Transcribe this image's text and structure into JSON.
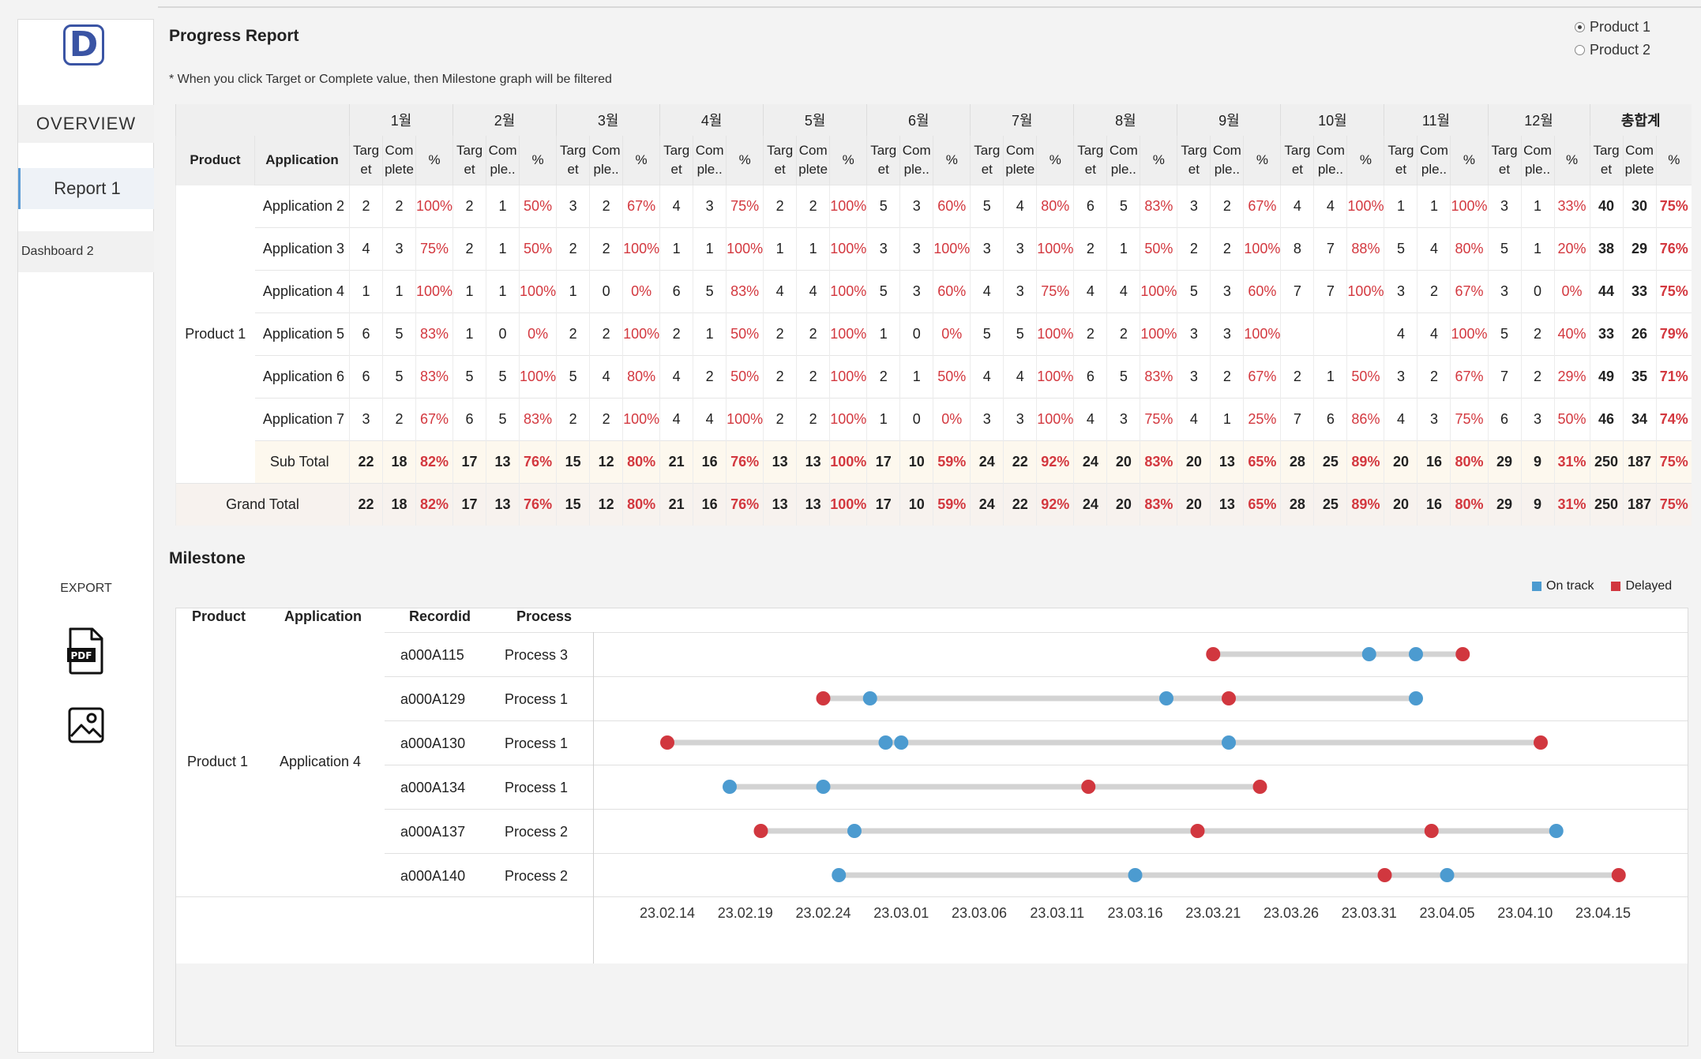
{
  "sidebar": {
    "logo_letter": "D",
    "nav": {
      "overview": "OVERVIEW",
      "report1": "Report 1",
      "dashboard2": "Dashboard 2"
    },
    "export_label": "EXPORT",
    "pdf_label": "PDF"
  },
  "header": {
    "title": "Progress Report",
    "note": "* When you click Target or Complete value, then Milestone graph will be filtered"
  },
  "product_filter": {
    "options": [
      "Product 1",
      "Product 2"
    ],
    "selected": "Product 1"
  },
  "progress_table": {
    "headers": {
      "product": "Product",
      "application": "Application",
      "months": [
        "1월",
        "2월",
        "3월",
        "4월",
        "5월",
        "6월",
        "7월",
        "8월",
        "9월",
        "10월",
        "11월",
        "12월"
      ],
      "total": "총합계",
      "target_lines": [
        "Targ",
        "et"
      ],
      "complete_lines_full": [
        "Com",
        "plete"
      ],
      "complete_lines_short": [
        "Com",
        "ple.."
      ],
      "percent": "%"
    },
    "complete_full_columns": [
      0,
      4,
      6,
      12
    ],
    "product_label": "Product 1",
    "rows": [
      {
        "application": "Application 2",
        "months": [
          [
            "2",
            "2",
            "100%"
          ],
          [
            "2",
            "1",
            "50%"
          ],
          [
            "3",
            "2",
            "67%"
          ],
          [
            "4",
            "3",
            "75%"
          ],
          [
            "2",
            "2",
            "100%"
          ],
          [
            "5",
            "3",
            "60%"
          ],
          [
            "5",
            "4",
            "80%"
          ],
          [
            "6",
            "5",
            "83%"
          ],
          [
            "3",
            "2",
            "67%"
          ],
          [
            "4",
            "4",
            "100%"
          ],
          [
            "1",
            "1",
            "100%"
          ],
          [
            "3",
            "1",
            "33%"
          ]
        ],
        "total": [
          "40",
          "30",
          "75%"
        ]
      },
      {
        "application": "Application 3",
        "months": [
          [
            "4",
            "3",
            "75%"
          ],
          [
            "2",
            "1",
            "50%"
          ],
          [
            "2",
            "2",
            "100%"
          ],
          [
            "1",
            "1",
            "100%"
          ],
          [
            "1",
            "1",
            "100%"
          ],
          [
            "3",
            "3",
            "100%"
          ],
          [
            "3",
            "3",
            "100%"
          ],
          [
            "2",
            "1",
            "50%"
          ],
          [
            "2",
            "2",
            "100%"
          ],
          [
            "8",
            "7",
            "88%"
          ],
          [
            "5",
            "4",
            "80%"
          ],
          [
            "5",
            "1",
            "20%"
          ]
        ],
        "total": [
          "38",
          "29",
          "76%"
        ]
      },
      {
        "application": "Application 4",
        "months": [
          [
            "1",
            "1",
            "100%"
          ],
          [
            "1",
            "1",
            "100%"
          ],
          [
            "1",
            "0",
            "0%"
          ],
          [
            "6",
            "5",
            "83%"
          ],
          [
            "4",
            "4",
            "100%"
          ],
          [
            "5",
            "3",
            "60%"
          ],
          [
            "4",
            "3",
            "75%"
          ],
          [
            "4",
            "4",
            "100%"
          ],
          [
            "5",
            "3",
            "60%"
          ],
          [
            "7",
            "7",
            "100%"
          ],
          [
            "3",
            "2",
            "67%"
          ],
          [
            "3",
            "0",
            "0%"
          ]
        ],
        "total": [
          "44",
          "33",
          "75%"
        ]
      },
      {
        "application": "Application 5",
        "months": [
          [
            "6",
            "5",
            "83%"
          ],
          [
            "1",
            "0",
            "0%"
          ],
          [
            "2",
            "2",
            "100%"
          ],
          [
            "2",
            "1",
            "50%"
          ],
          [
            "2",
            "2",
            "100%"
          ],
          [
            "1",
            "0",
            "0%"
          ],
          [
            "5",
            "5",
            "100%"
          ],
          [
            "2",
            "2",
            "100%"
          ],
          [
            "3",
            "3",
            "100%"
          ],
          [
            "",
            "",
            ""
          ],
          [
            "4",
            "4",
            "100%"
          ],
          [
            "5",
            "2",
            "40%"
          ]
        ],
        "total": [
          "33",
          "26",
          "79%"
        ]
      },
      {
        "application": "Application 6",
        "months": [
          [
            "6",
            "5",
            "83%"
          ],
          [
            "5",
            "5",
            "100%"
          ],
          [
            "5",
            "4",
            "80%"
          ],
          [
            "4",
            "2",
            "50%"
          ],
          [
            "2",
            "2",
            "100%"
          ],
          [
            "2",
            "1",
            "50%"
          ],
          [
            "4",
            "4",
            "100%"
          ],
          [
            "6",
            "5",
            "83%"
          ],
          [
            "3",
            "2",
            "67%"
          ],
          [
            "2",
            "1",
            "50%"
          ],
          [
            "3",
            "2",
            "67%"
          ],
          [
            "7",
            "2",
            "29%"
          ]
        ],
        "total": [
          "49",
          "35",
          "71%"
        ]
      },
      {
        "application": "Application 7",
        "months": [
          [
            "3",
            "2",
            "67%"
          ],
          [
            "6",
            "5",
            "83%"
          ],
          [
            "2",
            "2",
            "100%"
          ],
          [
            "4",
            "4",
            "100%"
          ],
          [
            "2",
            "2",
            "100%"
          ],
          [
            "1",
            "0",
            "0%"
          ],
          [
            "3",
            "3",
            "100%"
          ],
          [
            "4",
            "3",
            "75%"
          ],
          [
            "4",
            "1",
            "25%"
          ],
          [
            "7",
            "6",
            "86%"
          ],
          [
            "4",
            "3",
            "75%"
          ],
          [
            "6",
            "3",
            "50%"
          ]
        ],
        "total": [
          "46",
          "34",
          "74%"
        ]
      }
    ],
    "subtotal": {
      "label": "Sub Total",
      "months": [
        [
          "22",
          "18",
          "82%"
        ],
        [
          "17",
          "13",
          "76%"
        ],
        [
          "15",
          "12",
          "80%"
        ],
        [
          "21",
          "16",
          "76%"
        ],
        [
          "13",
          "13",
          "100%"
        ],
        [
          "17",
          "10",
          "59%"
        ],
        [
          "24",
          "22",
          "92%"
        ],
        [
          "24",
          "20",
          "83%"
        ],
        [
          "20",
          "13",
          "65%"
        ],
        [
          "28",
          "25",
          "89%"
        ],
        [
          "20",
          "16",
          "80%"
        ],
        [
          "29",
          "9",
          "31%"
        ]
      ],
      "total": [
        "250",
        "187",
        "75%"
      ]
    },
    "grandtotal": {
      "label": "Grand Total",
      "months": [
        [
          "22",
          "18",
          "82%"
        ],
        [
          "17",
          "13",
          "76%"
        ],
        [
          "15",
          "12",
          "80%"
        ],
        [
          "21",
          "16",
          "76%"
        ],
        [
          "13",
          "13",
          "100%"
        ],
        [
          "17",
          "10",
          "59%"
        ],
        [
          "24",
          "22",
          "92%"
        ],
        [
          "24",
          "20",
          "83%"
        ],
        [
          "20",
          "13",
          "65%"
        ],
        [
          "28",
          "25",
          "89%"
        ],
        [
          "20",
          "16",
          "80%"
        ],
        [
          "29",
          "9",
          "31%"
        ]
      ],
      "total": [
        "250",
        "187",
        "75%"
      ]
    }
  },
  "milestone": {
    "title": "Milestone",
    "legend": [
      {
        "label": "On track",
        "color": "#4c9bd0"
      },
      {
        "label": "Delayed",
        "color": "#d1373f"
      }
    ],
    "headers": {
      "product": "Product",
      "application": "Application",
      "recordid": "Recordid",
      "process": "Process"
    },
    "product": "Product 1",
    "application": "Application 4",
    "records": [
      {
        "recordid": "a000A115",
        "process": "Process 3"
      },
      {
        "recordid": "a000A129",
        "process": "Process 1"
      },
      {
        "recordid": "a000A130",
        "process": "Process 1"
      },
      {
        "recordid": "a000A134",
        "process": "Process 1"
      },
      {
        "recordid": "a000A137",
        "process": "Process 2"
      },
      {
        "recordid": "a000A140",
        "process": "Process 2"
      }
    ]
  },
  "chart_data": {
    "type": "scatter",
    "x_axis": "date",
    "x_tick_labels": [
      "23.02.14",
      "23.02.19",
      "23.02.24",
      "23.03.01",
      "23.03.06",
      "23.03.11",
      "23.03.16",
      "23.03.21",
      "23.03.26",
      "23.03.31",
      "23.04.05",
      "23.04.10",
      "23.04.15"
    ],
    "xlim": [
      "2023-02-10",
      "2023-04-18"
    ],
    "categories": [
      "a000A115",
      "a000A129",
      "a000A130",
      "a000A134",
      "a000A137",
      "a000A140"
    ],
    "series": [
      {
        "name": "On track",
        "color": "#4c9bd0",
        "points": [
          {
            "category": "a000A115",
            "dates": [
              "2023-03-31",
              "2023-04-03"
            ]
          },
          {
            "category": "a000A129",
            "dates": [
              "2023-02-27",
              "2023-03-18",
              "2023-04-03"
            ]
          },
          {
            "category": "a000A130",
            "dates": [
              "2023-02-28",
              "2023-03-01",
              "2023-03-22"
            ]
          },
          {
            "category": "a000A134",
            "dates": [
              "2023-02-18",
              "2023-02-24"
            ]
          },
          {
            "category": "a000A137",
            "dates": [
              "2023-02-26",
              "2023-04-12"
            ]
          },
          {
            "category": "a000A140",
            "dates": [
              "2023-02-25",
              "2023-03-16",
              "2023-04-05"
            ]
          }
        ]
      },
      {
        "name": "Delayed",
        "color": "#d1373f",
        "points": [
          {
            "category": "a000A115",
            "dates": [
              "2023-03-21",
              "2023-04-06"
            ]
          },
          {
            "category": "a000A129",
            "dates": [
              "2023-02-24",
              "2023-03-22"
            ]
          },
          {
            "category": "a000A130",
            "dates": [
              "2023-02-14",
              "2023-04-11"
            ]
          },
          {
            "category": "a000A134",
            "dates": [
              "2023-03-13",
              "2023-03-24"
            ]
          },
          {
            "category": "a000A137",
            "dates": [
              "2023-02-20",
              "2023-03-20",
              "2023-04-04"
            ]
          },
          {
            "category": "a000A140",
            "dates": [
              "2023-04-01",
              "2023-04-16"
            ]
          }
        ]
      }
    ]
  }
}
